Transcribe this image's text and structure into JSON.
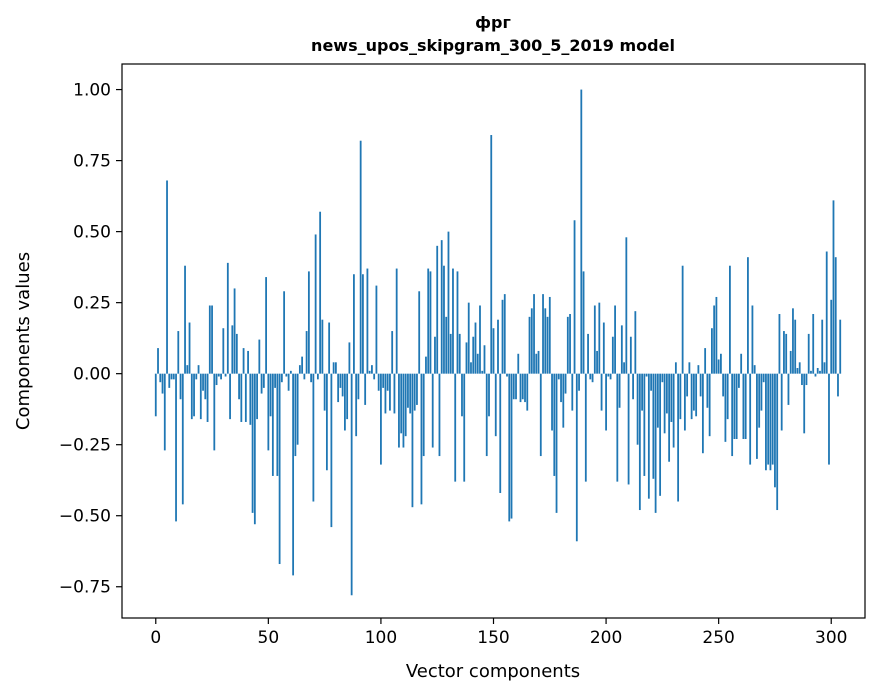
{
  "chart_data": {
    "type": "bar",
    "title": "фрг",
    "subtitle": "news_upos_skipgram_300_5_2019 model",
    "xlabel": "Vector components",
    "ylabel": "Components values",
    "xlim": [
      -15,
      315
    ],
    "ylim": [
      -0.86,
      1.09
    ],
    "xticks": [
      0,
      50,
      100,
      150,
      200,
      250,
      300
    ],
    "yticks": [
      -0.75,
      -0.5,
      -0.25,
      0.0,
      0.25,
      0.5,
      0.75,
      1.0
    ],
    "ytick_labels": [
      "−0.75",
      "−0.50",
      "−0.25",
      "0.00",
      "0.25",
      "0.50",
      "0.75",
      "1.00"
    ],
    "grid": false,
    "color": "#1f77b4",
    "values": [
      -0.15,
      0.09,
      -0.03,
      -0.07,
      -0.27,
      0.68,
      -0.05,
      -0.02,
      -0.02,
      -0.52,
      0.15,
      -0.09,
      -0.46,
      0.38,
      0.03,
      0.18,
      -0.16,
      -0.15,
      -0.02,
      0.03,
      -0.16,
      -0.06,
      -0.09,
      -0.17,
      0.24,
      0.24,
      -0.27,
      -0.04,
      -0.01,
      -0.02,
      0.16,
      -0.01,
      0.39,
      -0.16,
      0.17,
      0.3,
      0.14,
      -0.09,
      -0.17,
      0.09,
      -0.17,
      0.08,
      -0.18,
      -0.49,
      -0.53,
      -0.16,
      0.12,
      -0.07,
      -0.05,
      0.34,
      -0.27,
      -0.15,
      -0.36,
      -0.05,
      -0.36,
      -0.67,
      -0.03,
      0.29,
      -0.01,
      -0.06,
      0.01,
      -0.71,
      -0.29,
      -0.25,
      0.03,
      0.06,
      -0.02,
      0.15,
      0.36,
      -0.03,
      -0.45,
      0.49,
      -0.02,
      0.57,
      0.19,
      -0.13,
      -0.34,
      0.18,
      -0.54,
      0.04,
      0.04,
      -0.1,
      -0.05,
      -0.08,
      -0.2,
      -0.16,
      0.11,
      -0.78,
      0.35,
      -0.22,
      -0.09,
      0.82,
      0.35,
      -0.11,
      0.37,
      0.01,
      0.03,
      -0.02,
      0.31,
      -0.06,
      -0.32,
      -0.05,
      -0.14,
      -0.06,
      -0.13,
      0.15,
      -0.14,
      0.37,
      -0.26,
      -0.21,
      -0.26,
      -0.22,
      -0.12,
      -0.14,
      -0.47,
      -0.13,
      -0.11,
      0.29,
      -0.46,
      -0.29,
      0.06,
      0.37,
      0.36,
      -0.26,
      0.13,
      0.45,
      -0.29,
      0.47,
      0.38,
      0.2,
      0.5,
      0.14,
      0.37,
      -0.38,
      0.36,
      0.14,
      -0.15,
      -0.38,
      0.11,
      0.25,
      0.04,
      0.13,
      0.18,
      0.07,
      0.24,
      0.01,
      0.1,
      -0.29,
      -0.15,
      0.84,
      0.16,
      -0.22,
      0.19,
      -0.42,
      0.26,
      0.28,
      -0.01,
      -0.52,
      -0.51,
      -0.09,
      -0.09,
      0.07,
      -0.1,
      -0.09,
      -0.1,
      -0.13,
      0.2,
      0.23,
      0.28,
      0.07,
      0.08,
      -0.29,
      0.28,
      0.23,
      0.2,
      0.27,
      -0.2,
      -0.36,
      -0.49,
      -0.02,
      -0.1,
      -0.19,
      -0.07,
      0.2,
      0.21,
      -0.13,
      0.54,
      -0.59,
      -0.06,
      1.0,
      0.36,
      -0.38,
      0.14,
      -0.02,
      -0.03,
      0.24,
      0.08,
      0.25,
      -0.13,
      0.18,
      -0.2,
      -0.01,
      -0.02,
      0.13,
      0.24,
      -0.38,
      -0.12,
      0.17,
      0.04,
      0.48,
      -0.39,
      0.13,
      -0.09,
      0.22,
      -0.25,
      -0.48,
      -0.13,
      -0.36,
      -0.01,
      -0.44,
      -0.06,
      -0.37,
      -0.49,
      -0.19,
      -0.43,
      -0.03,
      -0.21,
      -0.14,
      -0.31,
      -0.17,
      -0.26,
      0.04,
      -0.45,
      -0.16,
      0.38,
      -0.2,
      -0.08,
      0.04,
      -0.16,
      -0.13,
      -0.15,
      0.03,
      -0.08,
      -0.28,
      0.09,
      -0.12,
      -0.22,
      0.16,
      0.24,
      0.27,
      0.05,
      0.07,
      -0.08,
      -0.24,
      -0.16,
      0.38,
      -0.29,
      -0.23,
      -0.23,
      -0.05,
      0.07,
      -0.23,
      -0.23,
      0.41,
      -0.32,
      0.24,
      0.03,
      -0.3,
      -0.19,
      -0.13,
      -0.03,
      -0.34,
      -0.32,
      -0.34,
      -0.32,
      -0.4,
      -0.48,
      0.21,
      -0.2,
      0.15,
      0.14,
      -0.11,
      0.08,
      0.23,
      0.19,
      0.02,
      0.04,
      -0.04,
      -0.21,
      -0.04,
      0.14,
      0.01,
      0.21,
      -0.01,
      0.02,
      0.01,
      0.19,
      0.04,
      0.43,
      -0.32,
      0.26,
      0.61,
      0.41,
      -0.08,
      0.19
    ]
  }
}
